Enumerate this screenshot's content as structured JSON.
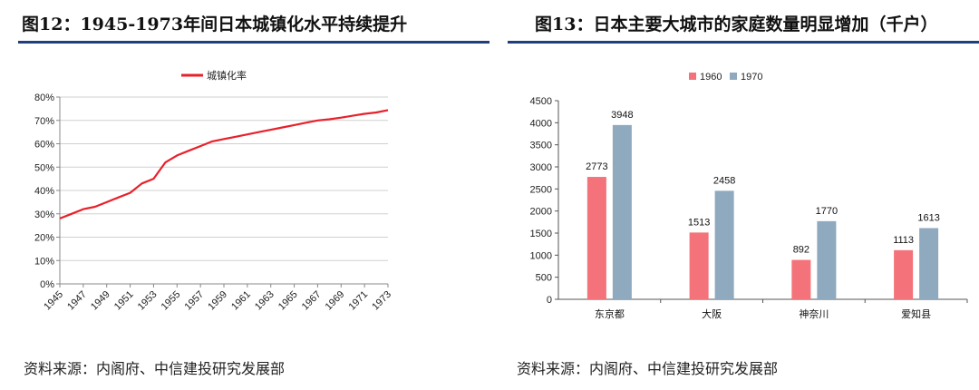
{
  "left": {
    "title": "图12：1945-1973年间日本城镇化水平持续提升",
    "source": "资料来源：内阁府、中信建投研究发展部"
  },
  "right": {
    "title": "图13：日本主要大城市的家庭数量明显增加（千户）",
    "source": "资料来源：内阁府、中信建投研究发展部"
  },
  "colors": {
    "line": "#e8202a",
    "bar1960": "#f4727a",
    "bar1970": "#8fa9bf",
    "rule": "#1f3e7a"
  },
  "chart_data": [
    {
      "type": "line",
      "title": "",
      "legend": "top-center",
      "xlabel": "",
      "ylabel": "",
      "ylim": [
        0,
        80
      ],
      "y_ticks": [
        "0%",
        "10%",
        "20%",
        "30%",
        "40%",
        "50%",
        "60%",
        "70%",
        "80%"
      ],
      "x_ticks": [
        "1945",
        "1947",
        "1949",
        "1951",
        "1953",
        "1955",
        "1957",
        "1959",
        "1961",
        "1963",
        "1965",
        "1967",
        "1969",
        "1971",
        "1973"
      ],
      "grid": true,
      "series": [
        {
          "name": "城镇化率",
          "x": [
            1945,
            1946,
            1947,
            1948,
            1949,
            1950,
            1951,
            1952,
            1953,
            1954,
            1955,
            1956,
            1957,
            1958,
            1959,
            1960,
            1961,
            1962,
            1963,
            1964,
            1965,
            1966,
            1967,
            1968,
            1969,
            1970,
            1971,
            1972,
            1973
          ],
          "values": [
            28,
            30,
            32,
            33,
            35,
            37,
            39,
            43,
            45,
            52,
            55,
            57,
            59,
            61,
            62,
            63,
            64,
            65,
            66,
            67,
            68,
            69,
            70,
            70.5,
            71.2,
            72,
            72.8,
            73.4,
            74.4
          ]
        }
      ]
    },
    {
      "type": "bar",
      "title": "",
      "legend": "top-center",
      "xlabel": "",
      "ylabel": "",
      "ylim": [
        0,
        4500
      ],
      "y_ticks": [
        "0",
        "500",
        "1000",
        "1500",
        "2000",
        "2500",
        "3000",
        "3500",
        "4000",
        "4500"
      ],
      "grid": false,
      "categories": [
        "东京都",
        "大阪",
        "神奈川",
        "爱知县"
      ],
      "series": [
        {
          "name": "1960",
          "values": [
            2773,
            1513,
            892,
            1113
          ]
        },
        {
          "name": "1970",
          "values": [
            3948,
            2458,
            1770,
            1613
          ]
        }
      ]
    }
  ]
}
